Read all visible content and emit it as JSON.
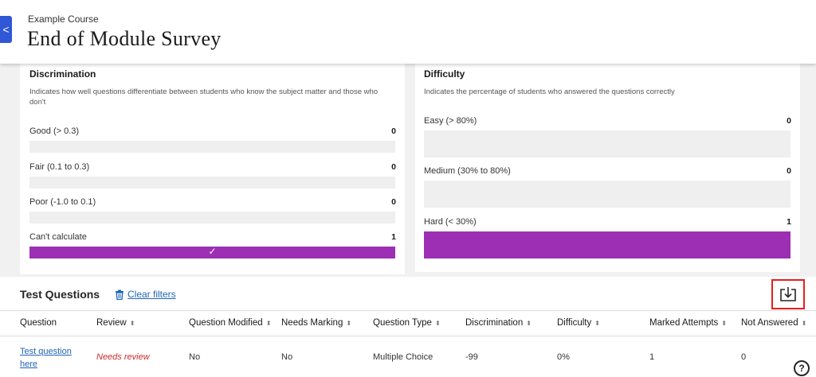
{
  "header": {
    "course_name": "Example Course",
    "title": "End of Module Survey",
    "back_label": "<"
  },
  "discrimination": {
    "title": "Discrimination",
    "description": "Indicates how well questions differentiate between students who know the subject matter and those who don't",
    "rows": [
      {
        "label": "Good (> 0.3)",
        "count": "0",
        "fill": 0
      },
      {
        "label": "Fair (0.1 to 0.3)",
        "count": "0",
        "fill": 0
      },
      {
        "label": "Poor (-1.0 to 0.1)",
        "count": "0",
        "fill": 0
      },
      {
        "label": "Can't calculate",
        "count": "1",
        "fill": 1
      }
    ],
    "selected_mark": "✓"
  },
  "difficulty": {
    "title": "Difficulty",
    "description": "Indicates the percentage of students who answered the questions correctly",
    "rows": [
      {
        "label": "Easy (> 80%)",
        "count": "0",
        "fill": 0
      },
      {
        "label": "Medium (30% to 80%)",
        "count": "0",
        "fill": 0
      },
      {
        "label": "Hard (< 30%)",
        "count": "1",
        "fill": 1
      }
    ]
  },
  "test_questions": {
    "title": "Test Questions",
    "clear_filters": "Clear filters"
  },
  "table": {
    "sort_glyph": "⬍",
    "headers": {
      "question": "Question",
      "review": "Review",
      "modified": "Question Modified",
      "marking": "Needs Marking",
      "type": "Question Type",
      "discrimination": "Discrimination",
      "difficulty": "Difficulty",
      "attempts": "Marked Attempts",
      "not_answered": "Not Answered"
    },
    "row": {
      "question": "Test question here",
      "review": "Needs review",
      "modified": "No",
      "marking": "No",
      "type": "Multiple Choice",
      "discrimination": "-99",
      "difficulty": "0%",
      "attempts": "1",
      "not_answered": "0"
    }
  },
  "help": {
    "label": "?"
  },
  "colors": {
    "accent_purple": "#9c2fb4",
    "link_blue": "#1f64b5",
    "highlight_red": "#e41e1e"
  }
}
